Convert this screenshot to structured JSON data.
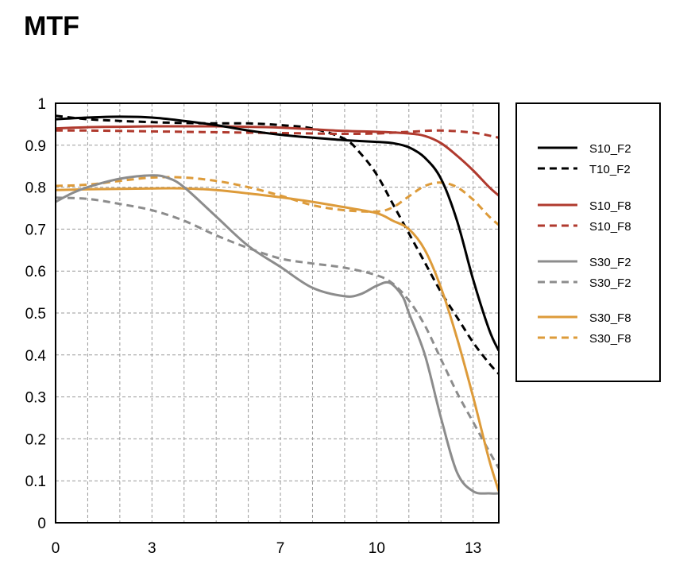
{
  "chart_data": {
    "type": "line",
    "title": "MTF",
    "xlabel": "",
    "ylabel": "",
    "xlim": [
      0,
      13.8
    ],
    "ylim": [
      0,
      1
    ],
    "x_ticks": [
      {
        "value": 0,
        "label": "0"
      },
      {
        "value": 3,
        "label": "3"
      },
      {
        "value": 7,
        "label": "7"
      },
      {
        "value": 10,
        "label": "10"
      },
      {
        "value": 13,
        "label": "13"
      }
    ],
    "y_ticks": [
      {
        "value": 0,
        "label": "0"
      },
      {
        "value": 0.1,
        "label": "0.1"
      },
      {
        "value": 0.2,
        "label": "0.2"
      },
      {
        "value": 0.3,
        "label": "0.3"
      },
      {
        "value": 0.4,
        "label": "0.4"
      },
      {
        "value": 0.5,
        "label": "0.5"
      },
      {
        "value": 0.6,
        "label": "0.6"
      },
      {
        "value": 0.7,
        "label": "0.7"
      },
      {
        "value": 0.8,
        "label": "0.8"
      },
      {
        "value": 0.9,
        "label": "0.9"
      },
      {
        "value": 1,
        "label": "1"
      }
    ],
    "grid": true,
    "legend_position": "right",
    "series": [
      {
        "name": "S10_F2",
        "color": "#000000",
        "dash": "solid",
        "points": [
          [
            0,
            0.962
          ],
          [
            1,
            0.966
          ],
          [
            2,
            0.968
          ],
          [
            3,
            0.966
          ],
          [
            4,
            0.958
          ],
          [
            5,
            0.948
          ],
          [
            6,
            0.935
          ],
          [
            7,
            0.925
          ],
          [
            8,
            0.918
          ],
          [
            9,
            0.912
          ],
          [
            10,
            0.908
          ],
          [
            10.5,
            0.905
          ],
          [
            11,
            0.895
          ],
          [
            11.5,
            0.87
          ],
          [
            12,
            0.82
          ],
          [
            12.5,
            0.72
          ],
          [
            13,
            0.58
          ],
          [
            13.5,
            0.46
          ],
          [
            13.8,
            0.41
          ]
        ]
      },
      {
        "name": "T10_F2",
        "color": "#000000",
        "dash": "dashed",
        "points": [
          [
            0,
            0.97
          ],
          [
            1,
            0.962
          ],
          [
            2,
            0.958
          ],
          [
            3,
            0.955
          ],
          [
            4,
            0.953
          ],
          [
            5,
            0.952
          ],
          [
            6,
            0.952
          ],
          [
            7,
            0.948
          ],
          [
            8,
            0.94
          ],
          [
            9,
            0.915
          ],
          [
            9.5,
            0.88
          ],
          [
            10,
            0.83
          ],
          [
            10.5,
            0.76
          ],
          [
            11,
            0.69
          ],
          [
            11.5,
            0.62
          ],
          [
            12,
            0.55
          ],
          [
            12.5,
            0.49
          ],
          [
            13,
            0.43
          ],
          [
            13.5,
            0.38
          ],
          [
            13.8,
            0.355
          ]
        ]
      },
      {
        "name": "S10_F8",
        "color": "#B03A2E",
        "dash": "solid",
        "points": [
          [
            0,
            0.94
          ],
          [
            1,
            0.943
          ],
          [
            2,
            0.944
          ],
          [
            3,
            0.945
          ],
          [
            4,
            0.945
          ],
          [
            5,
            0.945
          ],
          [
            6,
            0.944
          ],
          [
            7,
            0.942
          ],
          [
            8,
            0.938
          ],
          [
            9,
            0.934
          ],
          [
            10,
            0.932
          ],
          [
            11,
            0.928
          ],
          [
            11.5,
            0.922
          ],
          [
            12,
            0.905
          ],
          [
            12.5,
            0.875
          ],
          [
            13,
            0.84
          ],
          [
            13.5,
            0.8
          ],
          [
            13.8,
            0.78
          ]
        ]
      },
      {
        "name": "S10_F8",
        "color": "#B03A2E",
        "dash": "dashed",
        "points": [
          [
            0,
            0.935
          ],
          [
            1,
            0.935
          ],
          [
            2,
            0.934
          ],
          [
            3,
            0.933
          ],
          [
            4,
            0.932
          ],
          [
            5,
            0.931
          ],
          [
            6,
            0.93
          ],
          [
            7,
            0.929
          ],
          [
            8,
            0.928
          ],
          [
            9,
            0.927
          ],
          [
            10,
            0.928
          ],
          [
            11,
            0.932
          ],
          [
            12,
            0.935
          ],
          [
            13,
            0.93
          ],
          [
            13.8,
            0.918
          ]
        ]
      },
      {
        "name": "S30_F2",
        "color": "#8C8C8C",
        "dash": "solid",
        "points": [
          [
            0,
            0.765
          ],
          [
            0.5,
            0.785
          ],
          [
            1,
            0.8
          ],
          [
            2,
            0.82
          ],
          [
            3,
            0.828
          ],
          [
            3.5,
            0.822
          ],
          [
            4,
            0.8
          ],
          [
            5,
            0.73
          ],
          [
            6,
            0.66
          ],
          [
            7,
            0.61
          ],
          [
            8,
            0.56
          ],
          [
            9,
            0.54
          ],
          [
            9.5,
            0.545
          ],
          [
            10,
            0.565
          ],
          [
            10.4,
            0.572
          ],
          [
            10.8,
            0.54
          ],
          [
            11,
            0.5
          ],
          [
            11.5,
            0.4
          ],
          [
            12,
            0.25
          ],
          [
            12.5,
            0.12
          ],
          [
            13,
            0.075
          ],
          [
            13.5,
            0.07
          ],
          [
            13.8,
            0.07
          ]
        ]
      },
      {
        "name": "S30_F2",
        "color": "#8C8C8C",
        "dash": "dashed",
        "points": [
          [
            0,
            0.775
          ],
          [
            1,
            0.772
          ],
          [
            2,
            0.76
          ],
          [
            3,
            0.745
          ],
          [
            4,
            0.72
          ],
          [
            5,
            0.685
          ],
          [
            6,
            0.655
          ],
          [
            7,
            0.63
          ],
          [
            8,
            0.618
          ],
          [
            9,
            0.608
          ],
          [
            10,
            0.59
          ],
          [
            10.5,
            0.57
          ],
          [
            11,
            0.53
          ],
          [
            11.5,
            0.47
          ],
          [
            12,
            0.39
          ],
          [
            12.5,
            0.31
          ],
          [
            13,
            0.24
          ],
          [
            13.5,
            0.17
          ],
          [
            13.8,
            0.13
          ]
        ]
      },
      {
        "name": "S30_F8",
        "color": "#DD9B3A",
        "dash": "solid",
        "points": [
          [
            0,
            0.793
          ],
          [
            1,
            0.795
          ],
          [
            2,
            0.796
          ],
          [
            3,
            0.797
          ],
          [
            4,
            0.797
          ],
          [
            5,
            0.793
          ],
          [
            6,
            0.785
          ],
          [
            7,
            0.776
          ],
          [
            8,
            0.765
          ],
          [
            9,
            0.752
          ],
          [
            10,
            0.738
          ],
          [
            10.5,
            0.72
          ],
          [
            11,
            0.7
          ],
          [
            11.5,
            0.65
          ],
          [
            12,
            0.56
          ],
          [
            12.5,
            0.44
          ],
          [
            13,
            0.3
          ],
          [
            13.5,
            0.15
          ],
          [
            13.8,
            0.075
          ]
        ]
      },
      {
        "name": "S30_F8",
        "color": "#DD9B3A",
        "dash": "dashed",
        "points": [
          [
            0,
            0.803
          ],
          [
            1,
            0.806
          ],
          [
            2,
            0.815
          ],
          [
            3,
            0.823
          ],
          [
            4,
            0.823
          ],
          [
            5,
            0.815
          ],
          [
            6,
            0.8
          ],
          [
            7,
            0.78
          ],
          [
            8,
            0.757
          ],
          [
            9,
            0.745
          ],
          [
            10,
            0.742
          ],
          [
            10.5,
            0.752
          ],
          [
            11,
            0.778
          ],
          [
            11.5,
            0.803
          ],
          [
            12,
            0.811
          ],
          [
            12.5,
            0.8
          ],
          [
            13,
            0.77
          ],
          [
            13.5,
            0.73
          ],
          [
            13.8,
            0.71
          ]
        ]
      }
    ]
  }
}
